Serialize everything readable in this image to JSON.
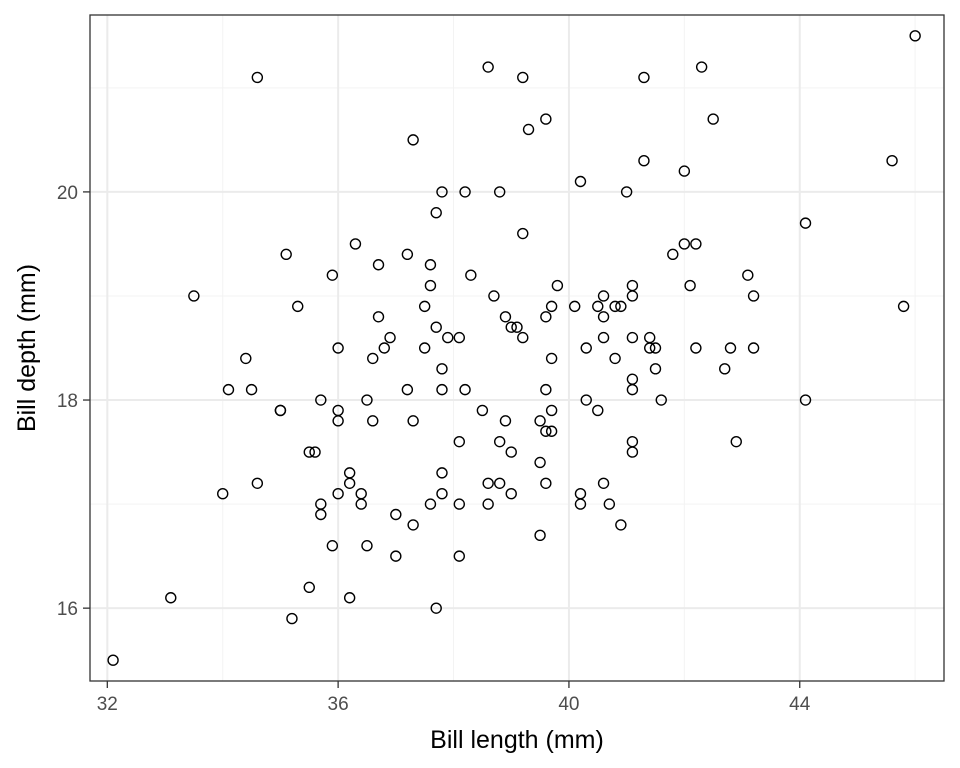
{
  "chart_data": {
    "type": "scatter",
    "title": "",
    "xlabel": "Bill length (mm)",
    "ylabel": "Bill depth (mm)",
    "xlim": [
      31.7,
      46.5
    ],
    "ylim": [
      15.3,
      21.7
    ],
    "x_ticks": [
      32,
      36,
      40,
      44
    ],
    "y_ticks": [
      16,
      18,
      20
    ],
    "x_minor_ticks": [
      34,
      38,
      42,
      46
    ],
    "y_minor_ticks": [
      17,
      19,
      21
    ],
    "grid": true,
    "marker": "open-circle",
    "colors": {
      "panel_border": "#333333",
      "grid_major": "#ebebeb",
      "grid_minor": "#f3f3f3",
      "point_stroke": "#000000"
    },
    "points": [
      [
        32.1,
        15.5
      ],
      [
        33.1,
        16.1
      ],
      [
        33.5,
        19.0
      ],
      [
        34.0,
        17.1
      ],
      [
        34.1,
        18.1
      ],
      [
        34.4,
        18.4
      ],
      [
        34.5,
        18.1
      ],
      [
        34.6,
        17.2
      ],
      [
        34.6,
        21.1
      ],
      [
        35.0,
        17.9
      ],
      [
        35.0,
        17.9
      ],
      [
        35.1,
        19.4
      ],
      [
        35.2,
        15.9
      ],
      [
        35.3,
        18.9
      ],
      [
        35.5,
        16.2
      ],
      [
        35.5,
        17.5
      ],
      [
        35.6,
        17.5
      ],
      [
        35.7,
        16.9
      ],
      [
        35.7,
        17.0
      ],
      [
        35.7,
        18.0
      ],
      [
        35.9,
        16.6
      ],
      [
        35.9,
        19.2
      ],
      [
        36.0,
        17.1
      ],
      [
        36.0,
        17.8
      ],
      [
        36.0,
        17.9
      ],
      [
        36.0,
        18.5
      ],
      [
        36.2,
        16.1
      ],
      [
        36.2,
        17.2
      ],
      [
        36.2,
        17.3
      ],
      [
        36.3,
        19.5
      ],
      [
        36.4,
        17.0
      ],
      [
        36.4,
        17.1
      ],
      [
        36.5,
        16.6
      ],
      [
        36.5,
        18.0
      ],
      [
        36.6,
        17.8
      ],
      [
        36.6,
        18.4
      ],
      [
        36.7,
        18.8
      ],
      [
        36.7,
        19.3
      ],
      [
        36.8,
        18.5
      ],
      [
        36.9,
        18.6
      ],
      [
        37.0,
        16.5
      ],
      [
        37.0,
        16.9
      ],
      [
        37.2,
        18.1
      ],
      [
        37.2,
        19.4
      ],
      [
        37.3,
        16.8
      ],
      [
        37.3,
        17.8
      ],
      [
        37.3,
        20.5
      ],
      [
        37.5,
        18.5
      ],
      [
        37.5,
        18.9
      ],
      [
        37.6,
        17.0
      ],
      [
        37.6,
        19.1
      ],
      [
        37.6,
        19.3
      ],
      [
        37.7,
        16.0
      ],
      [
        37.7,
        18.7
      ],
      [
        37.7,
        19.8
      ],
      [
        37.8,
        17.1
      ],
      [
        37.8,
        17.3
      ],
      [
        37.8,
        18.1
      ],
      [
        37.8,
        18.3
      ],
      [
        37.8,
        20.0
      ],
      [
        37.9,
        18.6
      ],
      [
        38.1,
        16.5
      ],
      [
        38.1,
        17.0
      ],
      [
        38.1,
        17.6
      ],
      [
        38.1,
        18.6
      ],
      [
        38.2,
        18.1
      ],
      [
        38.2,
        20.0
      ],
      [
        38.3,
        19.2
      ],
      [
        38.5,
        17.9
      ],
      [
        38.6,
        17.0
      ],
      [
        38.6,
        17.2
      ],
      [
        38.6,
        21.2
      ],
      [
        38.7,
        19.0
      ],
      [
        38.8,
        17.2
      ],
      [
        38.8,
        17.6
      ],
      [
        38.8,
        20.0
      ],
      [
        38.9,
        17.8
      ],
      [
        38.9,
        18.8
      ],
      [
        39.0,
        17.1
      ],
      [
        39.0,
        17.5
      ],
      [
        39.0,
        18.7
      ],
      [
        39.1,
        18.7
      ],
      [
        39.2,
        18.6
      ],
      [
        39.2,
        19.6
      ],
      [
        39.2,
        21.1
      ],
      [
        39.3,
        20.6
      ],
      [
        39.5,
        16.7
      ],
      [
        39.5,
        17.4
      ],
      [
        39.5,
        17.8
      ],
      [
        39.6,
        17.2
      ],
      [
        39.6,
        17.7
      ],
      [
        39.6,
        18.1
      ],
      [
        39.6,
        18.8
      ],
      [
        39.6,
        20.7
      ],
      [
        39.7,
        17.7
      ],
      [
        39.7,
        17.9
      ],
      [
        39.7,
        18.4
      ],
      [
        39.7,
        18.9
      ],
      [
        39.8,
        19.1
      ],
      [
        40.1,
        18.9
      ],
      [
        40.2,
        17.0
      ],
      [
        40.2,
        17.1
      ],
      [
        40.2,
        20.1
      ],
      [
        40.3,
        18.0
      ],
      [
        40.3,
        18.5
      ],
      [
        40.5,
        17.9
      ],
      [
        40.5,
        18.9
      ],
      [
        40.6,
        17.2
      ],
      [
        40.6,
        18.6
      ],
      [
        40.6,
        18.8
      ],
      [
        40.6,
        19.0
      ],
      [
        40.7,
        17.0
      ],
      [
        40.8,
        18.4
      ],
      [
        40.8,
        18.9
      ],
      [
        40.9,
        16.8
      ],
      [
        40.9,
        18.9
      ],
      [
        41.0,
        20.0
      ],
      [
        41.1,
        17.5
      ],
      [
        41.1,
        17.6
      ],
      [
        41.1,
        18.1
      ],
      [
        41.1,
        18.2
      ],
      [
        41.1,
        18.6
      ],
      [
        41.1,
        19.0
      ],
      [
        41.1,
        19.1
      ],
      [
        41.3,
        20.3
      ],
      [
        41.3,
        21.1
      ],
      [
        41.4,
        18.5
      ],
      [
        41.4,
        18.6
      ],
      [
        41.5,
        18.3
      ],
      [
        41.5,
        18.5
      ],
      [
        41.6,
        18.0
      ],
      [
        41.8,
        19.4
      ],
      [
        42.0,
        20.2
      ],
      [
        42.0,
        19.5
      ],
      [
        42.1,
        19.1
      ],
      [
        42.2,
        18.5
      ],
      [
        42.2,
        19.5
      ],
      [
        42.3,
        21.2
      ],
      [
        42.5,
        20.7
      ],
      [
        42.7,
        18.3
      ],
      [
        42.8,
        18.5
      ],
      [
        42.9,
        17.6
      ],
      [
        43.1,
        19.2
      ],
      [
        43.2,
        18.5
      ],
      [
        43.2,
        19.0
      ],
      [
        44.1,
        18.0
      ],
      [
        44.1,
        19.7
      ],
      [
        45.6,
        20.3
      ],
      [
        45.8,
        18.9
      ],
      [
        46.0,
        21.5
      ]
    ]
  }
}
